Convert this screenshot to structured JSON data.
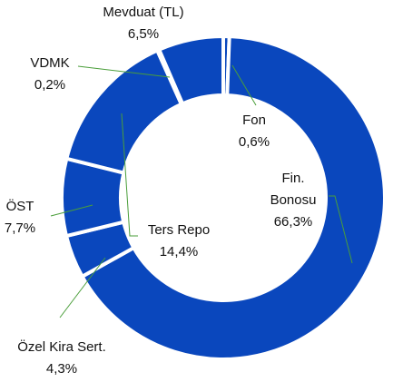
{
  "chart_data": {
    "type": "donut",
    "categories": [
      "Fon",
      "Fin. Bonosu",
      "Özel Kira Sert.",
      "ÖST",
      "Ters Repo",
      "VDMK",
      "Mevduat (TL)"
    ],
    "values": [
      0.6,
      66.3,
      4.3,
      7.7,
      14.4,
      0.2,
      6.5
    ],
    "value_labels": [
      "0,6%",
      "66,3%",
      "4,3%",
      "7,7%",
      "14,4%",
      "0,2%",
      "6,5%"
    ],
    "color": "#0a47bd"
  }
}
